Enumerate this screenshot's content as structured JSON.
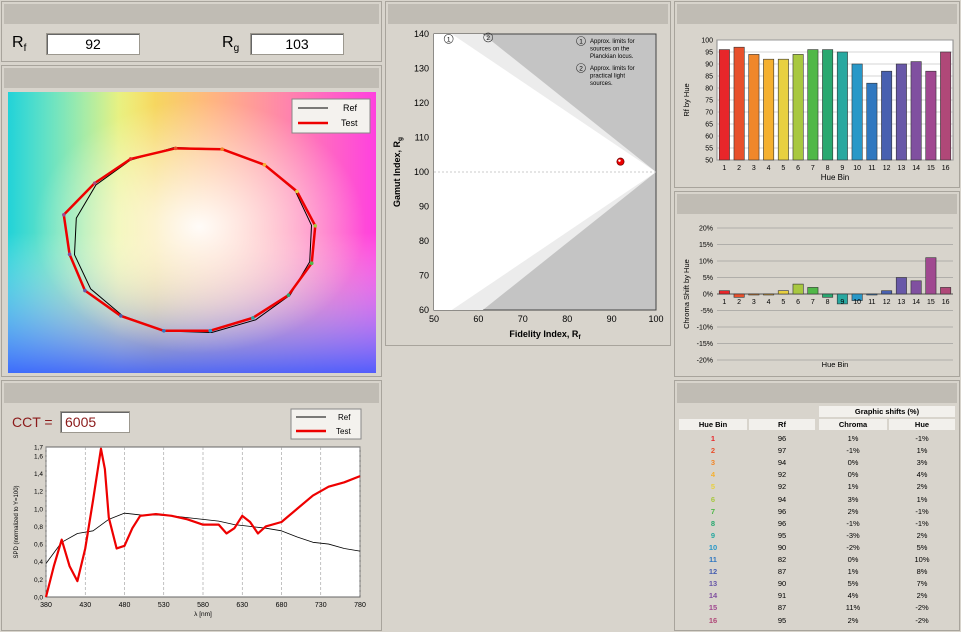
{
  "metrics": {
    "rf_label": "R",
    "rf_sub": "f",
    "rf_value": "92",
    "rg_label": "R",
    "rg_sub": "g",
    "rg_value": "103"
  },
  "cct": {
    "label": "CCT =",
    "value": "6005"
  },
  "legend": {
    "ref": "Ref",
    "test": "Test"
  },
  "gamut_chart": {
    "xlabel": "Fidelity Index, R",
    "xlabel_sub": "f",
    "ylabel": "Gamut Index, R",
    "ylabel_sub": "g",
    "note1_num": "1",
    "note1_text": [
      "Approx. limits for",
      "sources on the",
      "Planckian locus."
    ],
    "note2_num": "2",
    "note2_text": [
      "Approx. limits for",
      "practical light",
      "sources."
    ]
  },
  "spd_chart": {
    "xlabel": "λ [nm]",
    "ylabel": "SPD (normalized to Y=100)"
  },
  "rf_chart": {
    "ylabel": "Rf by Hue",
    "xlabel": "Hue Bin"
  },
  "chroma_chart": {
    "ylabel": "Chroma Shift by Hue",
    "xlabel": "Hue Bin"
  },
  "table": {
    "group_header": "Graphic shifts (%)",
    "headers": [
      "Hue Bin",
      "Rf",
      "Chroma",
      "Hue"
    ],
    "rows": [
      [
        "1",
        "96",
        "1%",
        "-1%"
      ],
      [
        "2",
        "97",
        "-1%",
        "1%"
      ],
      [
        "3",
        "94",
        "0%",
        "3%"
      ],
      [
        "4",
        "92",
        "0%",
        "4%"
      ],
      [
        "5",
        "92",
        "1%",
        "2%"
      ],
      [
        "6",
        "94",
        "3%",
        "1%"
      ],
      [
        "7",
        "96",
        "2%",
        "-1%"
      ],
      [
        "8",
        "96",
        "-1%",
        "-1%"
      ],
      [
        "9",
        "95",
        "-3%",
        "2%"
      ],
      [
        "10",
        "90",
        "-2%",
        "5%"
      ],
      [
        "11",
        "82",
        "0%",
        "10%"
      ],
      [
        "12",
        "87",
        "1%",
        "8%"
      ],
      [
        "13",
        "90",
        "5%",
        "7%"
      ],
      [
        "14",
        "91",
        "4%",
        "2%"
      ],
      [
        "15",
        "87",
        "11%",
        "-2%"
      ],
      [
        "16",
        "95",
        "2%",
        "-2%"
      ]
    ]
  },
  "bin_colors": [
    "#e8262a",
    "#e8502c",
    "#f0872a",
    "#f5b030",
    "#e8d040",
    "#a8c840",
    "#50b848",
    "#28a870",
    "#28a8a0",
    "#2898c8",
    "#3078c0",
    "#4860b0",
    "#6858a8",
    "#8050a0",
    "#a04890",
    "#b04878"
  ],
  "chart_data": [
    {
      "type": "bar",
      "categories": [
        "1",
        "2",
        "3",
        "4",
        "5",
        "6",
        "7",
        "8",
        "9",
        "10",
        "11",
        "12",
        "13",
        "14",
        "15",
        "16"
      ],
      "values": [
        96,
        97,
        94,
        92,
        92,
        94,
        96,
        96,
        95,
        90,
        82,
        87,
        90,
        91,
        87,
        95
      ],
      "ylabel": "Rf by Hue",
      "xlabel": "Hue Bin",
      "ylim": [
        50,
        100
      ],
      "yticks": [
        50,
        55,
        60,
        65,
        70,
        75,
        80,
        85,
        90,
        95,
        100
      ]
    },
    {
      "type": "bar",
      "categories": [
        "1",
        "2",
        "3",
        "4",
        "5",
        "6",
        "7",
        "8",
        "9",
        "10",
        "11",
        "12",
        "13",
        "14",
        "15",
        "16"
      ],
      "values": [
        1,
        -1,
        0,
        0,
        1,
        3,
        2,
        -1,
        -3,
        -2,
        0,
        1,
        5,
        4,
        11,
        2
      ],
      "ylabel": "Chroma Shift by Hue",
      "xlabel": "Hue Bin",
      "ylim": [
        -20,
        20
      ],
      "yticks": [
        "-20%",
        "-15%",
        "-10%",
        "-5%",
        "0%",
        "5%",
        "10%",
        "15%",
        "20%"
      ]
    },
    {
      "type": "scatter",
      "x": [
        92
      ],
      "y": [
        103
      ],
      "xlim": [
        50,
        100
      ],
      "ylim": [
        60,
        140
      ],
      "xticks": [
        50,
        60,
        70,
        80,
        90,
        100
      ],
      "yticks": [
        60,
        70,
        80,
        90,
        100,
        110,
        120,
        130,
        140
      ]
    },
    {
      "type": "line",
      "xlim": [
        380,
        780
      ],
      "ylim": [
        0,
        1.7
      ],
      "xticks": [
        380,
        430,
        480,
        530,
        580,
        630,
        680,
        730,
        780
      ],
      "yticks": [
        "0,0",
        "0,2",
        "0,4",
        "0,6",
        "0,8",
        "1,0",
        "1,2",
        "1,4",
        "1,6",
        "1,7"
      ],
      "series": [
        {
          "name": "Ref",
          "x": [
            380,
            400,
            420,
            440,
            460,
            480,
            500,
            520,
            540,
            560,
            580,
            600,
            620,
            640,
            660,
            680,
            700,
            720,
            740,
            760,
            780
          ],
          "y": [
            0.38,
            0.62,
            0.72,
            0.75,
            0.88,
            0.95,
            0.93,
            0.93,
            0.92,
            0.9,
            0.88,
            0.86,
            0.82,
            0.8,
            0.78,
            0.75,
            0.68,
            0.62,
            0.6,
            0.55,
            0.52
          ]
        },
        {
          "name": "Test",
          "x": [
            380,
            390,
            400,
            410,
            420,
            430,
            440,
            450,
            455,
            460,
            470,
            480,
            490,
            500,
            520,
            540,
            560,
            580,
            600,
            610,
            620,
            630,
            640,
            650,
            660,
            680,
            700,
            720,
            740,
            760,
            780
          ],
          "y": [
            0.0,
            0.35,
            0.65,
            0.35,
            0.18,
            0.55,
            1.1,
            1.68,
            1.45,
            0.9,
            0.55,
            0.58,
            0.78,
            0.92,
            0.94,
            0.92,
            0.88,
            0.82,
            0.82,
            0.72,
            0.78,
            0.92,
            0.85,
            0.72,
            0.8,
            0.85,
            1.0,
            1.15,
            1.25,
            1.3,
            1.37
          ]
        }
      ]
    },
    {
      "type": "line",
      "name": "color vector graphic",
      "series": [
        {
          "name": "Ref",
          "x": [
            1,
            2,
            3,
            4,
            5,
            6,
            7,
            8,
            9,
            10,
            11,
            12,
            13,
            14,
            15,
            16
          ],
          "y": [
            0,
            0,
            0,
            0,
            0,
            0,
            0,
            0,
            0,
            0,
            0,
            0,
            0,
            0,
            0,
            0
          ]
        },
        {
          "name": "Test",
          "x": [
            1,
            2,
            3,
            4,
            5,
            6,
            7,
            8,
            9,
            10,
            11,
            12,
            13,
            14,
            15,
            16
          ],
          "y": [
            1,
            -1,
            0,
            0,
            1,
            3,
            2,
            -1,
            -3,
            -2,
            0,
            1,
            5,
            4,
            11,
            2
          ]
        }
      ]
    }
  ]
}
